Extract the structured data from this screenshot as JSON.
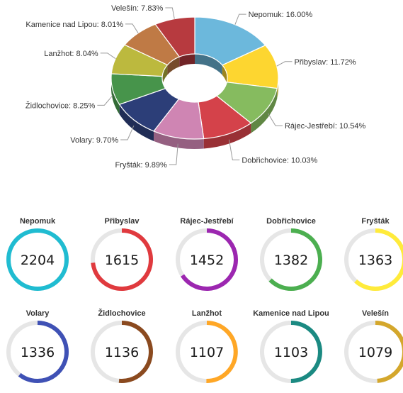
{
  "chart_data": [
    {
      "type": "pie",
      "style": "3d-donut",
      "labels": [
        "Nepomuk",
        "Přibyslav",
        "Rájec-Jestřebí",
        "Dobřichovice",
        "Fryšták",
        "Volary",
        "Židlochovice",
        "Lanžhot",
        "Kamenice nad Lipou",
        "Velešín"
      ],
      "values": [
        16.0,
        11.72,
        10.54,
        10.03,
        9.89,
        9.7,
        8.25,
        8.04,
        8.01,
        7.83
      ],
      "value_labels": [
        "16.00%",
        "11.72%",
        "10.54%",
        "10.03%",
        "9.89%",
        "9.70%",
        "8.25%",
        "8.04%",
        "8.01%",
        "7.83%"
      ],
      "colors": [
        "#6cb8dc",
        "#fdd630",
        "#86bb5f",
        "#d4424a",
        "#cf85b3",
        "#2c3e78",
        "#47944b",
        "#bcb93e",
        "#bf7a45",
        "#b73a3f"
      ]
    },
    {
      "type": "gauge",
      "max": 2204,
      "items": [
        {
          "label": "Nepomuk",
          "value": 2204,
          "display": "2204",
          "color": "#20bcd1"
        },
        {
          "label": "Přibyslav",
          "value": 1615,
          "display": "1615",
          "color": "#e03a3e"
        },
        {
          "label": "Rájec-Jestřebí",
          "value": 1452,
          "display": "1452",
          "color": "#9c27b0"
        },
        {
          "label": "Dobřichovice",
          "value": 1382,
          "display": "1382",
          "color": "#4caf50"
        },
        {
          "label": "Fryšták",
          "value": 1363,
          "display": "1363",
          "color": "#ffeb3b"
        },
        {
          "label": "Volary",
          "value": 1336,
          "display": "1336",
          "color": "#3f51b5"
        },
        {
          "label": "Židlochovice",
          "value": 1136,
          "display": "1136",
          "color": "#8b4a1f"
        },
        {
          "label": "Lanžhot",
          "value": 1107,
          "display": "1107",
          "color": "#ffa726"
        },
        {
          "label": "Kamenice nad Lipou",
          "value": 1103,
          "display": "1103",
          "color": "#1b8a82"
        },
        {
          "label": "Velešín",
          "value": 1079,
          "display": "1079",
          "color": "#d4a72c"
        }
      ]
    }
  ]
}
